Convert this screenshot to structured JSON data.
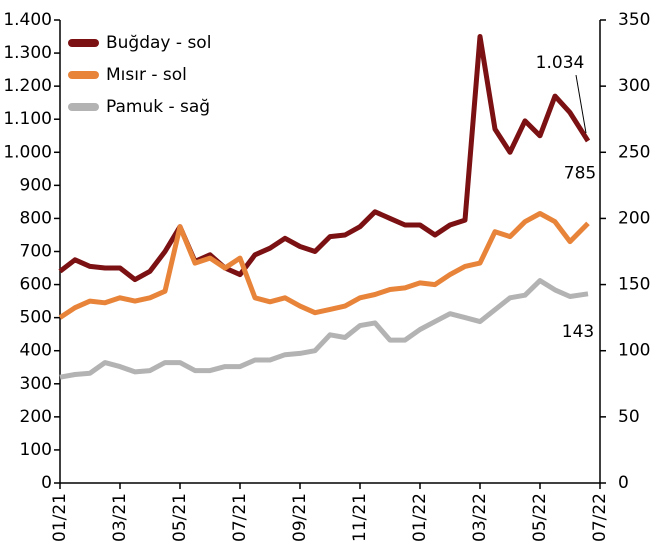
{
  "chart_data": {
    "type": "line",
    "x": [
      0,
      0.5,
      1,
      1.5,
      2,
      2.5,
      3,
      3.5,
      4,
      4.5,
      5,
      5.5,
      6,
      6.5,
      7,
      7.5,
      8,
      8.5,
      9,
      9.5,
      10,
      10.5,
      11,
      11.5,
      12,
      12.5,
      13,
      13.5,
      14,
      14.5,
      15,
      15.5,
      16,
      16.5,
      17,
      17.6
    ],
    "xlim": [
      0,
      18
    ],
    "xticks": [
      {
        "value": 0,
        "label": "01/21"
      },
      {
        "value": 2,
        "label": "03/21"
      },
      {
        "value": 4,
        "label": "05/21"
      },
      {
        "value": 6,
        "label": "07/21"
      },
      {
        "value": 8,
        "label": "09/21"
      },
      {
        "value": 10,
        "label": "11/21"
      },
      {
        "value": 12,
        "label": "01/22"
      },
      {
        "value": 14,
        "label": "03/22"
      },
      {
        "value": 16,
        "label": "05/22"
      },
      {
        "value": 18,
        "label": "07/22"
      }
    ],
    "ylim": [
      0,
      1400
    ],
    "yticks": [
      0,
      100,
      200,
      300,
      400,
      500,
      600,
      700,
      800,
      900,
      {
        "value": 1000,
        "label": "1.000"
      },
      {
        "value": 1100,
        "label": "1.100"
      },
      {
        "value": 1200,
        "label": "1.200"
      },
      {
        "value": 1300,
        "label": "1.300"
      },
      {
        "value": 1400,
        "label": "1.400"
      }
    ],
    "y2lim": [
      0,
      350
    ],
    "y2ticks": [
      0,
      50,
      100,
      150,
      200,
      250,
      300,
      350
    ],
    "legend": "upper left",
    "series": [
      {
        "name": "Buğday - sol",
        "color": "#7b1113",
        "values": [
          640,
          675,
          655,
          650,
          650,
          615,
          640,
          700,
          775,
          670,
          690,
          650,
          630,
          690,
          710,
          740,
          715,
          700,
          745,
          750,
          775,
          820,
          800,
          780,
          780,
          750,
          780,
          795,
          1350,
          1070,
          1000,
          1095,
          1050,
          1170,
          1120,
          1034
        ],
        "value_labels": [
          null,
          null,
          null,
          null,
          null,
          null,
          null,
          null,
          null,
          null,
          null,
          null,
          null,
          null,
          null,
          null,
          null,
          null,
          null,
          null,
          null,
          null,
          null,
          null,
          null,
          null,
          null,
          null,
          null,
          null,
          null,
          null,
          null,
          null,
          null,
          "1.034"
        ]
      },
      {
        "name": "Mısır - sol",
        "color": "#e8843a",
        "values": [
          500,
          530,
          550,
          545,
          560,
          550,
          560,
          580,
          775,
          665,
          680,
          650,
          680,
          560,
          548,
          560,
          535,
          515,
          525,
          535,
          560,
          570,
          585,
          590,
          605,
          600,
          630,
          655,
          665,
          760,
          745,
          790,
          815,
          790,
          730,
          785
        ],
        "value_labels": [
          null,
          null,
          null,
          null,
          null,
          null,
          null,
          null,
          null,
          null,
          null,
          null,
          null,
          null,
          null,
          null,
          null,
          null,
          null,
          null,
          null,
          null,
          null,
          null,
          null,
          null,
          null,
          null,
          null,
          null,
          null,
          null,
          null,
          null,
          null,
          "785"
        ]
      },
      {
        "name": "Pamuk - sağ",
        "color": "#b3b3b3",
        "axis": "y2",
        "values": [
          80,
          82,
          83,
          91,
          88,
          84,
          85,
          91,
          91,
          85,
          85,
          88,
          88,
          93,
          93,
          97,
          98,
          100,
          112,
          110,
          119,
          121,
          108,
          108,
          116,
          122,
          128,
          125,
          122,
          131,
          140,
          142,
          153,
          146,
          141,
          143
        ],
        "value_labels": [
          null,
          null,
          null,
          null,
          null,
          null,
          null,
          null,
          null,
          null,
          null,
          null,
          null,
          null,
          null,
          null,
          null,
          null,
          null,
          null,
          null,
          null,
          null,
          null,
          null,
          null,
          null,
          null,
          null,
          null,
          null,
          null,
          null,
          null,
          null,
          "143"
        ]
      }
    ]
  }
}
